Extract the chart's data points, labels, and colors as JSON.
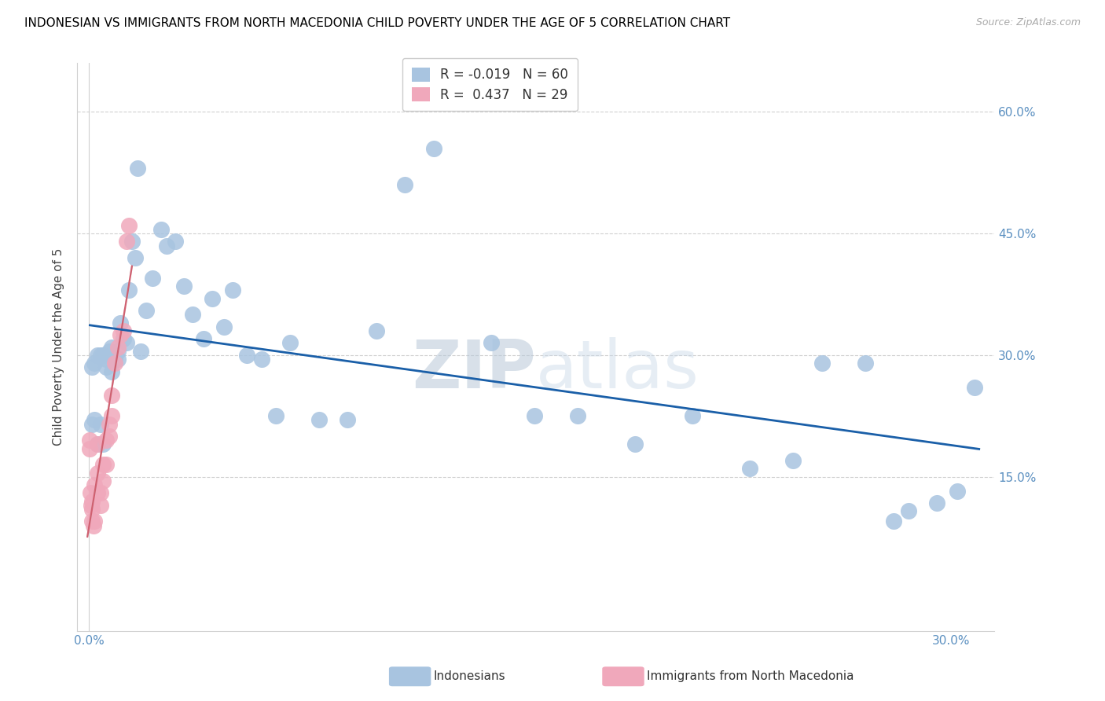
{
  "title": "INDONESIAN VS IMMIGRANTS FROM NORTH MACEDONIA CHILD POVERTY UNDER THE AGE OF 5 CORRELATION CHART",
  "source": "Source: ZipAtlas.com",
  "ylabel_label": "Child Poverty Under the Age of 5",
  "xlim": [
    -0.004,
    0.315
  ],
  "ylim": [
    -0.04,
    0.66
  ],
  "legend1_R": "-0.019",
  "legend1_N": "60",
  "legend2_R": "0.437",
  "legend2_N": "29",
  "blue_color": "#a8c4e0",
  "pink_color": "#f0a8bb",
  "line_blue": "#1a5fa8",
  "line_pink": "#d06070",
  "line_grey_dash": "#cccccc",
  "tick_color": "#5a8fc0",
  "grid_color": "#d0d0d0",
  "watermark_color": "#ccd8e8",
  "legend_label1": "Indonesians",
  "legend_label2": "Immigrants from North Macedonia",
  "indo_x": [
    0.001,
    0.001,
    0.002,
    0.002,
    0.003,
    0.003,
    0.004,
    0.004,
    0.005,
    0.005,
    0.006,
    0.006,
    0.007,
    0.008,
    0.008,
    0.009,
    0.01,
    0.01,
    0.011,
    0.012,
    0.013,
    0.014,
    0.015,
    0.016,
    0.017,
    0.018,
    0.02,
    0.022,
    0.025,
    0.027,
    0.03,
    0.033,
    0.036,
    0.04,
    0.043,
    0.047,
    0.05,
    0.055,
    0.06,
    0.065,
    0.07,
    0.08,
    0.09,
    0.1,
    0.11,
    0.12,
    0.14,
    0.155,
    0.17,
    0.19,
    0.21,
    0.23,
    0.245,
    0.255,
    0.27,
    0.28,
    0.285,
    0.295,
    0.302,
    0.308
  ],
  "indo_y": [
    0.285,
    0.215,
    0.29,
    0.22,
    0.3,
    0.19,
    0.3,
    0.215,
    0.3,
    0.19,
    0.285,
    0.295,
    0.305,
    0.28,
    0.31,
    0.295,
    0.305,
    0.295,
    0.34,
    0.32,
    0.315,
    0.38,
    0.44,
    0.42,
    0.53,
    0.305,
    0.355,
    0.395,
    0.455,
    0.435,
    0.44,
    0.385,
    0.35,
    0.32,
    0.37,
    0.335,
    0.38,
    0.3,
    0.295,
    0.225,
    0.315,
    0.22,
    0.22,
    0.33,
    0.51,
    0.555,
    0.315,
    0.225,
    0.225,
    0.19,
    0.225,
    0.16,
    0.17,
    0.29,
    0.29,
    0.095,
    0.108,
    0.118,
    0.132,
    0.26
  ],
  "mac_x": [
    0.0002,
    0.0003,
    0.0005,
    0.0007,
    0.001,
    0.001,
    0.001,
    0.0015,
    0.002,
    0.002,
    0.003,
    0.003,
    0.003,
    0.004,
    0.004,
    0.005,
    0.005,
    0.006,
    0.006,
    0.007,
    0.007,
    0.008,
    0.008,
    0.009,
    0.01,
    0.011,
    0.012,
    0.013,
    0.014
  ],
  "mac_y": [
    0.195,
    0.185,
    0.13,
    0.115,
    0.095,
    0.11,
    0.12,
    0.09,
    0.095,
    0.14,
    0.13,
    0.155,
    0.19,
    0.115,
    0.13,
    0.145,
    0.165,
    0.165,
    0.195,
    0.2,
    0.215,
    0.225,
    0.25,
    0.29,
    0.31,
    0.325,
    0.33,
    0.44,
    0.46
  ]
}
